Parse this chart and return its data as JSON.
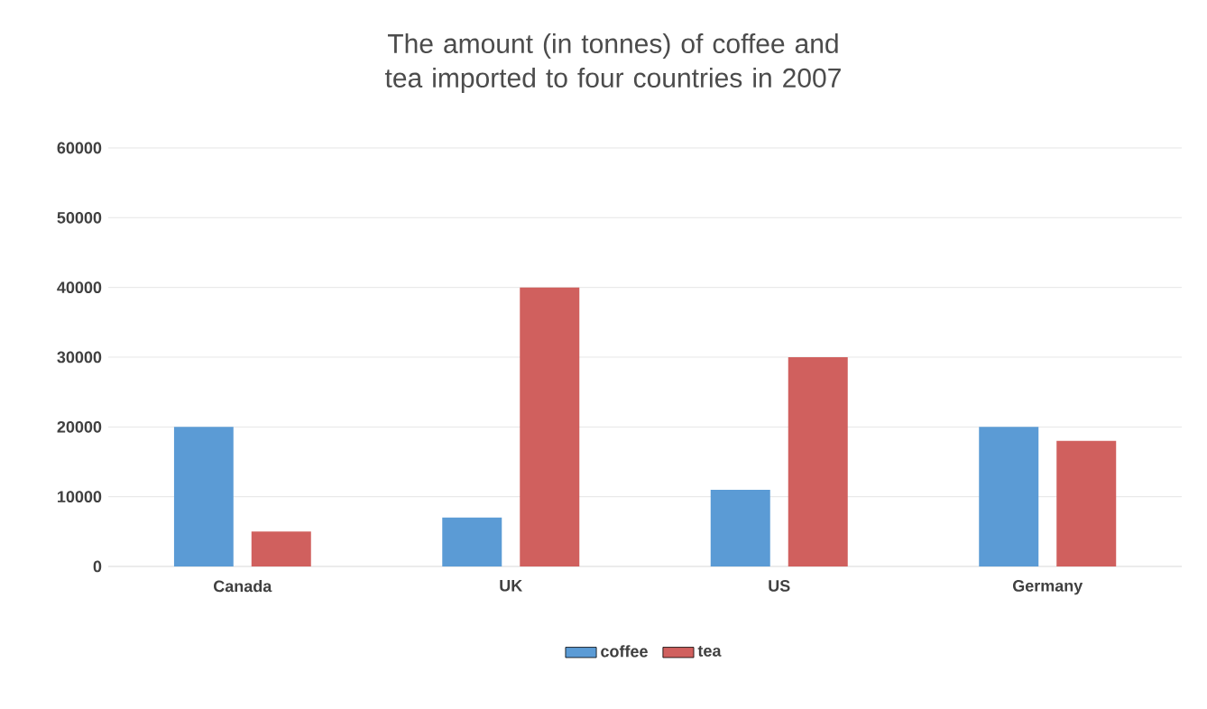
{
  "chart_data": {
    "type": "bar",
    "title": "The amount (in tonnes) of coffee and tea imported to four countries in 2007",
    "categories": [
      "Canada",
      "UK",
      "US",
      "Germany"
    ],
    "series": [
      {
        "name": "coffee",
        "color": "#5b9bd5",
        "values": [
          20000,
          7000,
          11000,
          20000
        ]
      },
      {
        "name": "tea",
        "color": "#d0605e",
        "values": [
          5000,
          40000,
          30000,
          18000
        ]
      }
    ],
    "ylim": [
      0,
      60000
    ],
    "yticks": [
      0,
      10000,
      20000,
      30000,
      40000,
      50000,
      60000
    ],
    "grid": "y",
    "legend": "bottom"
  }
}
